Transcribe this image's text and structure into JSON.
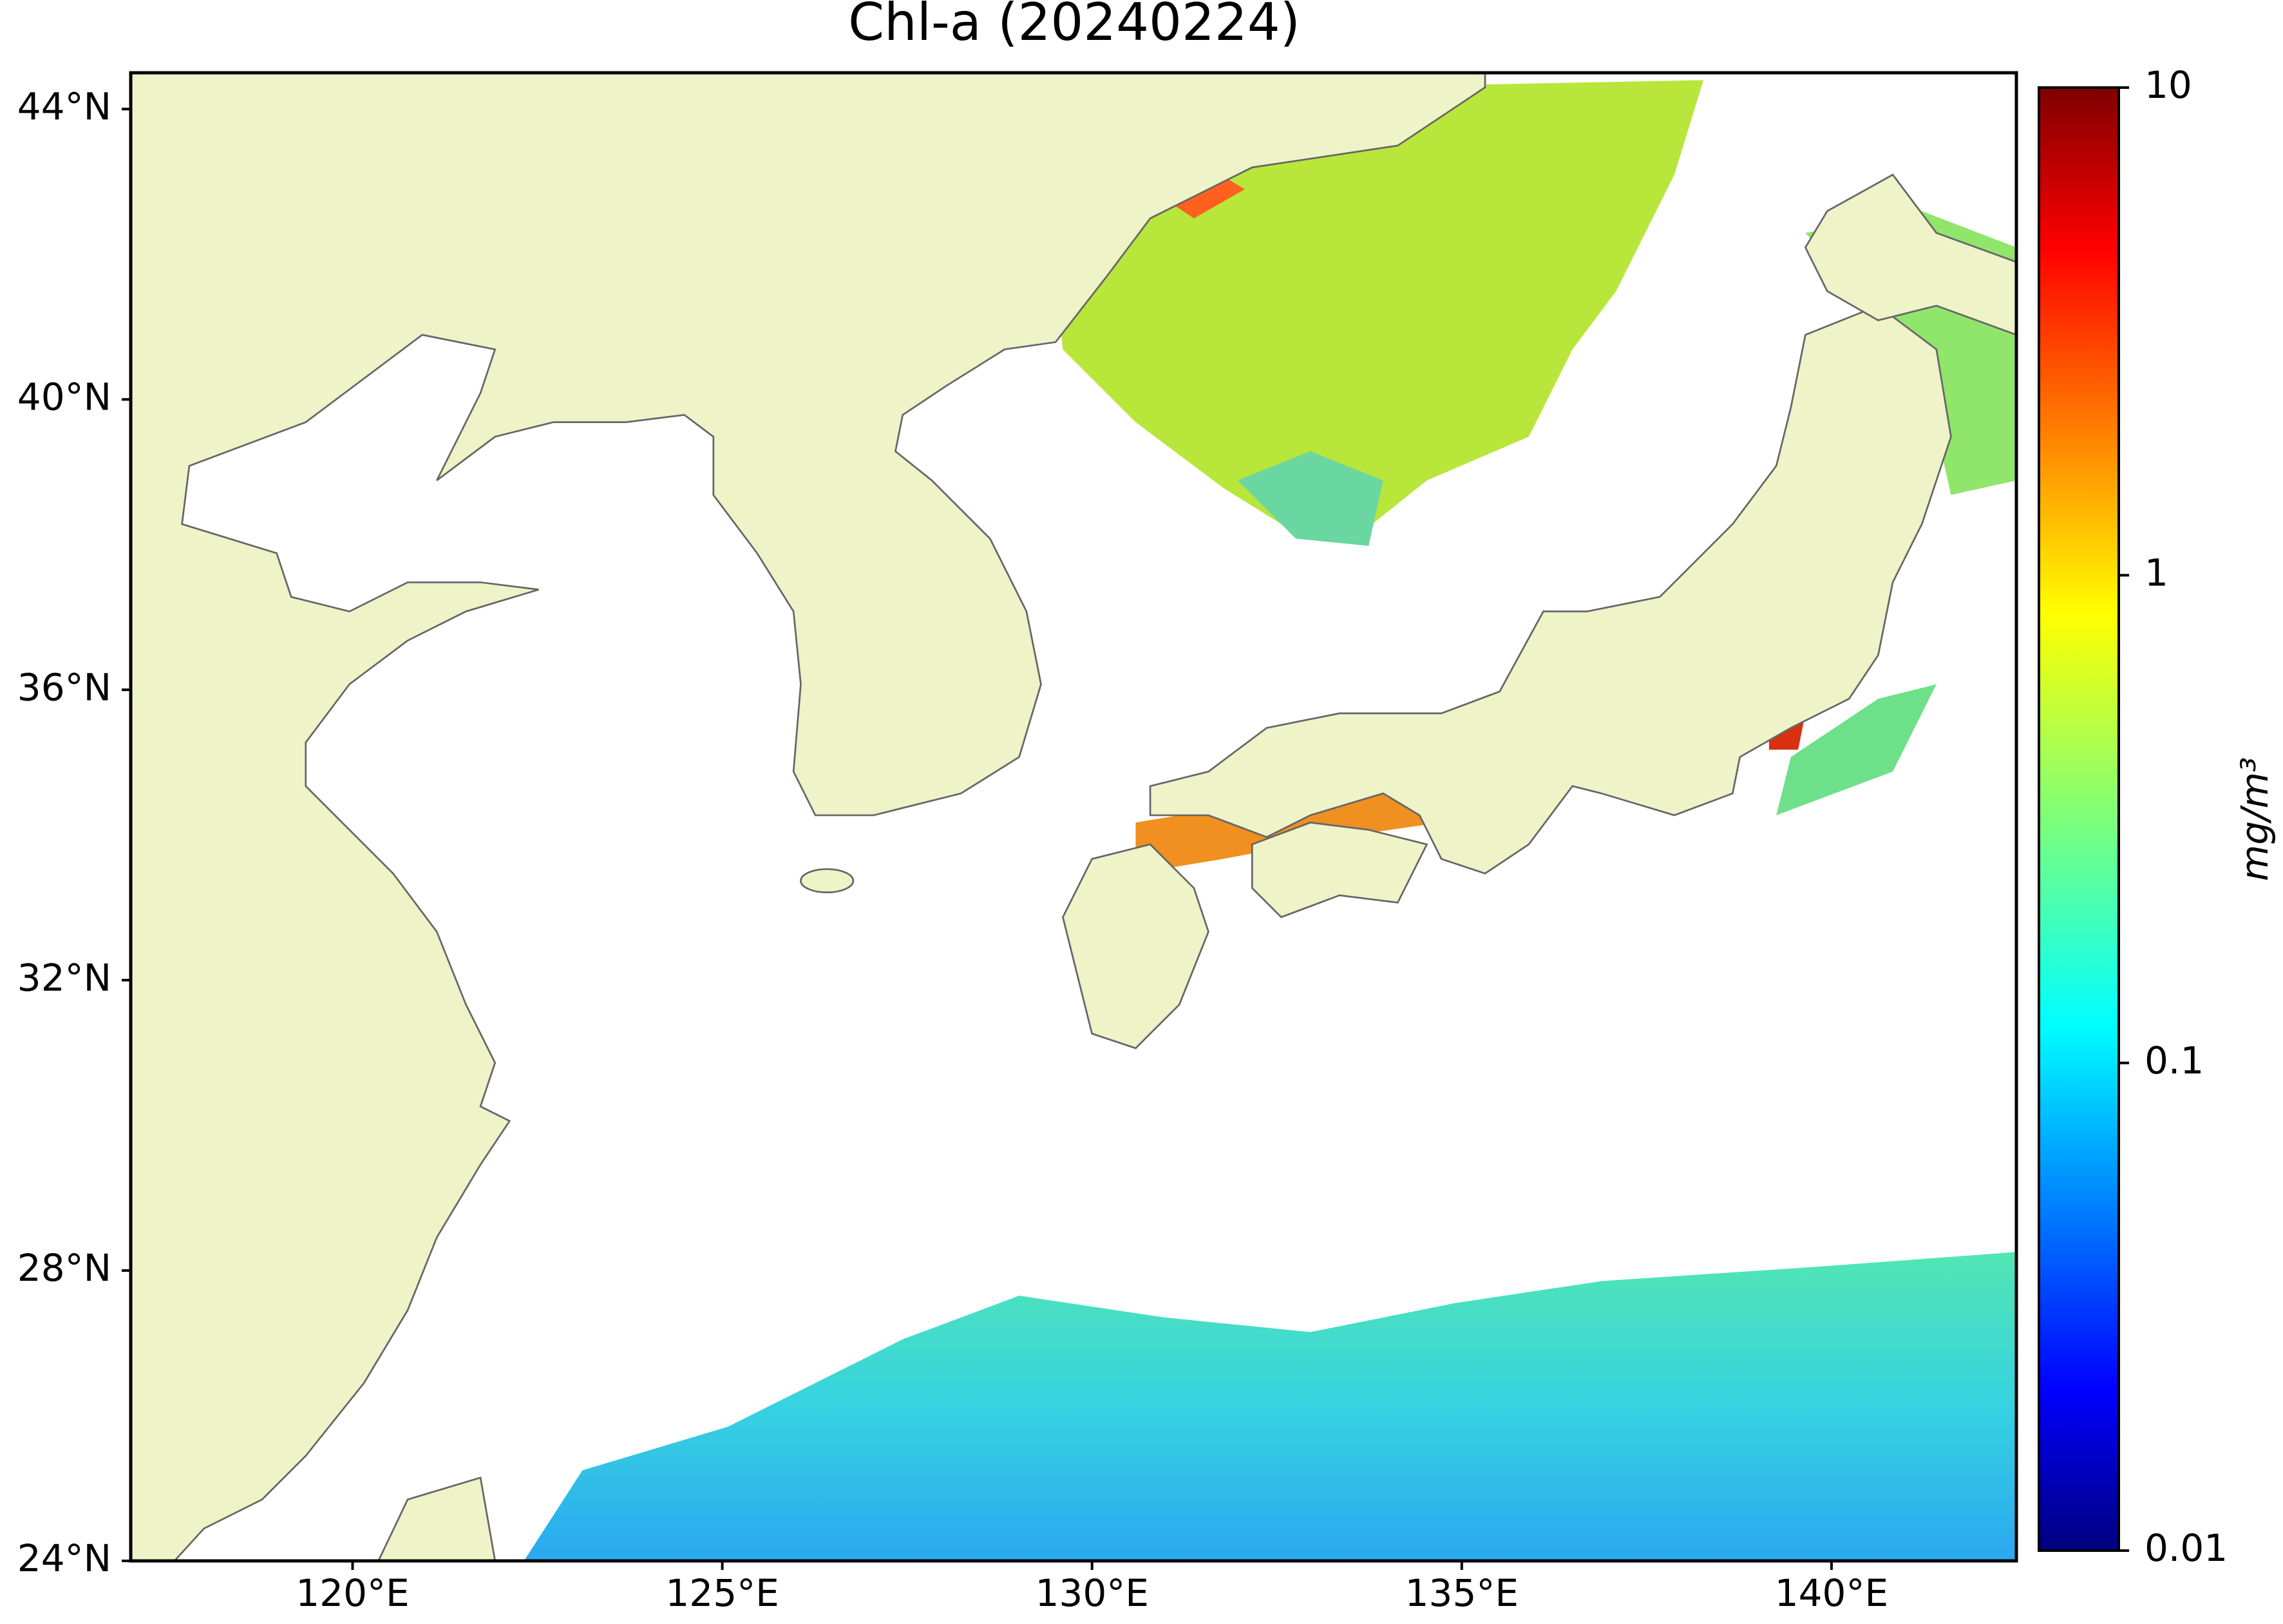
{
  "chart_data": {
    "type": "map",
    "title": "Chl-a (20240224)",
    "xlim": [
      117,
      142.5
    ],
    "ylim": [
      24,
      44.5
    ],
    "xticks": [
      {
        "value": 120,
        "label": "120°E"
      },
      {
        "value": 125,
        "label": "125°E"
      },
      {
        "value": 130,
        "label": "130°E"
      },
      {
        "value": 135,
        "label": "135°E"
      },
      {
        "value": 140,
        "label": "140°E"
      }
    ],
    "yticks": [
      {
        "value": 24,
        "label": "24°N"
      },
      {
        "value": 28,
        "label": "28°N"
      },
      {
        "value": 32,
        "label": "32°N"
      },
      {
        "value": 36,
        "label": "36°N"
      },
      {
        "value": 40,
        "label": "40°N"
      },
      {
        "value": 44,
        "label": "44°N"
      }
    ],
    "colorbar": {
      "label": "mg/m³",
      "lim": [
        0.01,
        10
      ],
      "ticks": [
        0.01,
        0.1,
        1,
        10
      ],
      "scale": "log",
      "colormap": "jet"
    }
  }
}
